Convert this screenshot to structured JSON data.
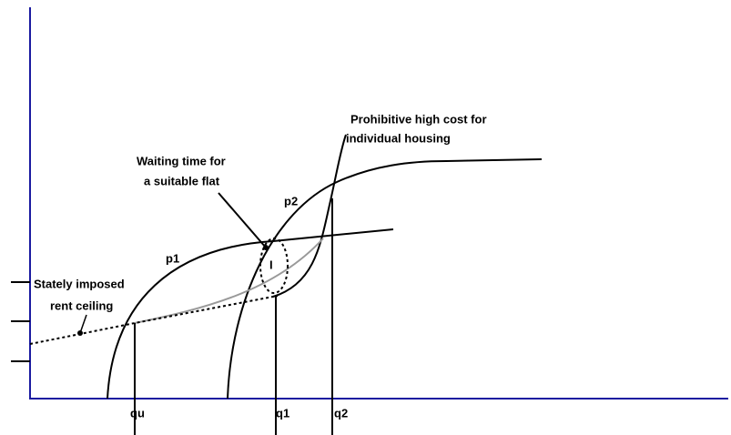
{
  "labels": {
    "prohibitive": [
      "Prohibitive high cost for",
      "individual housing"
    ],
    "waiting": [
      "Waiting time for",
      "a suitable flat"
    ],
    "ceiling": [
      "Stately imposed",
      "rent ceiling"
    ],
    "p1": "p1",
    "p2": "p2",
    "gap": "I",
    "qu": "qu",
    "q1": "q1",
    "q2": "q2"
  }
}
